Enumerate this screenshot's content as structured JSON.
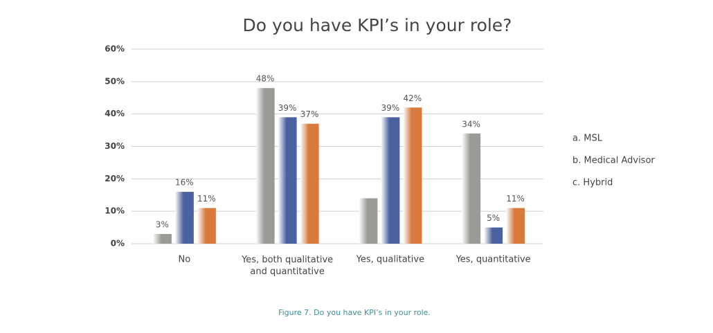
{
  "chart_data": {
    "type": "bar",
    "title": "Do you have KPI’s in your role?",
    "caption": "Figure 7. Do you have KPI’s in your role.",
    "categories": [
      "No",
      "Yes, both qualitative\nand quantitative",
      "Yes, qualitative",
      "Yes, quantitative"
    ],
    "series": [
      {
        "name": "a. MSL",
        "color": "#9a9a97",
        "values": [
          3,
          48,
          14,
          34
        ],
        "value_labels": [
          "3%",
          "48%",
          null,
          "34%"
        ]
      },
      {
        "name": "b. Medical Advisor",
        "color": "#4a62a0",
        "values": [
          16,
          39,
          39,
          5
        ],
        "value_labels": [
          "16%",
          "39%",
          "39%",
          "5%"
        ]
      },
      {
        "name": "c. Hybrid",
        "color": "#d77a3c",
        "values": [
          11,
          37,
          42,
          11
        ],
        "value_labels": [
          "11%",
          "37%",
          "42%",
          "11%"
        ]
      }
    ],
    "ylim": [
      0,
      60
    ],
    "yticks": [
      {
        "value": 0,
        "label": "0%"
      },
      {
        "value": 10,
        "label": "10%"
      },
      {
        "value": 20,
        "label": "20%"
      },
      {
        "value": 30,
        "label": "30%"
      },
      {
        "value": 40,
        "label": "40%"
      },
      {
        "value": 50,
        "label": "50%"
      },
      {
        "value": 60,
        "label": "60%"
      }
    ],
    "grid": true,
    "legend": "right"
  }
}
